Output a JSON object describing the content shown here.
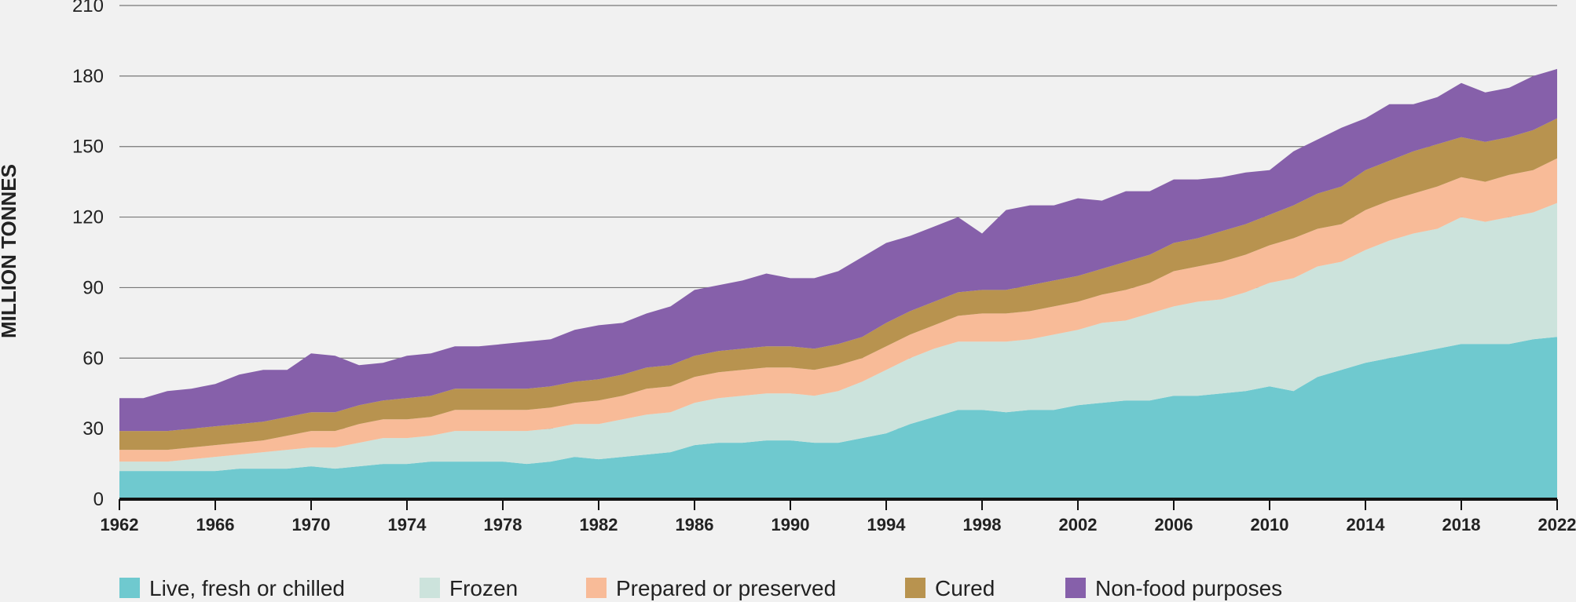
{
  "chart_data": {
    "type": "area",
    "stacked": true,
    "title": "",
    "xlabel": "",
    "ylabel": "MILLION TONNES",
    "ylim": [
      0,
      210
    ],
    "yticks": [
      0,
      30,
      60,
      90,
      120,
      150,
      180,
      210
    ],
    "xlim": [
      1962,
      2022
    ],
    "xticks": [
      1962,
      1966,
      1970,
      1974,
      1978,
      1982,
      1986,
      1990,
      1994,
      1998,
      2002,
      2006,
      2010,
      2014,
      2018,
      2022
    ],
    "grid": "horizontal",
    "legend_position": "bottom",
    "x": [
      1962,
      1963,
      1964,
      1965,
      1966,
      1967,
      1968,
      1969,
      1970,
      1971,
      1972,
      1973,
      1974,
      1975,
      1976,
      1977,
      1978,
      1979,
      1980,
      1981,
      1982,
      1983,
      1984,
      1985,
      1986,
      1987,
      1988,
      1989,
      1990,
      1991,
      1992,
      1993,
      1994,
      1995,
      1996,
      1997,
      1998,
      1999,
      2000,
      2001,
      2002,
      2003,
      2004,
      2005,
      2006,
      2007,
      2008,
      2009,
      2010,
      2011,
      2012,
      2013,
      2014,
      2015,
      2016,
      2017,
      2018,
      2019,
      2020,
      2021,
      2022
    ],
    "series": [
      {
        "name": "Live, fresh or chilled",
        "color": "#6fc9cf",
        "values": [
          12,
          12,
          12,
          12,
          12,
          13,
          13,
          13,
          14,
          13,
          14,
          15,
          15,
          16,
          16,
          16,
          16,
          15,
          16,
          18,
          17,
          18,
          19,
          20,
          23,
          24,
          24,
          25,
          25,
          24,
          24,
          26,
          28,
          32,
          35,
          38,
          38,
          37,
          38,
          38,
          40,
          41,
          42,
          42,
          44,
          44,
          45,
          46,
          48,
          46,
          52,
          55,
          58,
          60,
          62,
          64,
          66,
          66,
          66,
          68,
          69
        ]
      },
      {
        "name": "Frozen",
        "color": "#cce3dc",
        "values": [
          4,
          4,
          4,
          5,
          6,
          6,
          7,
          8,
          8,
          9,
          10,
          11,
          11,
          11,
          13,
          13,
          13,
          14,
          14,
          14,
          15,
          16,
          17,
          17,
          18,
          19,
          20,
          20,
          20,
          20,
          22,
          24,
          27,
          28,
          29,
          29,
          29,
          30,
          30,
          32,
          32,
          34,
          34,
          37,
          38,
          40,
          40,
          42,
          44,
          48,
          47,
          46,
          48,
          50,
          51,
          51,
          54,
          52,
          54,
          54,
          57
        ]
      },
      {
        "name": "Prepared or preserved",
        "color": "#f8bb98",
        "values": [
          5,
          5,
          5,
          5,
          5,
          5,
          5,
          6,
          7,
          7,
          8,
          8,
          8,
          8,
          9,
          9,
          9,
          9,
          9,
          9,
          10,
          10,
          11,
          11,
          11,
          11,
          11,
          11,
          11,
          11,
          11,
          10,
          10,
          10,
          10,
          11,
          12,
          12,
          12,
          12,
          12,
          12,
          13,
          13,
          15,
          15,
          16,
          16,
          16,
          17,
          16,
          16,
          17,
          17,
          17,
          18,
          17,
          17,
          18,
          18,
          19
        ]
      },
      {
        "name": "Cured",
        "color": "#b8934f",
        "values": [
          8,
          8,
          8,
          8,
          8,
          8,
          8,
          8,
          8,
          8,
          8,
          8,
          9,
          9,
          9,
          9,
          9,
          9,
          9,
          9,
          9,
          9,
          9,
          9,
          9,
          9,
          9,
          9,
          9,
          9,
          9,
          9,
          10,
          10,
          10,
          10,
          10,
          10,
          11,
          11,
          11,
          11,
          12,
          12,
          12,
          12,
          13,
          13,
          13,
          14,
          15,
          16,
          17,
          17,
          18,
          18,
          17,
          17,
          16,
          17,
          17
        ]
      },
      {
        "name": "Non-food purposes",
        "color": "#8660aa",
        "values": [
          14,
          14,
          17,
          17,
          18,
          21,
          22,
          20,
          25,
          24,
          17,
          16,
          18,
          18,
          18,
          18,
          19,
          20,
          20,
          22,
          23,
          22,
          23,
          25,
          28,
          28,
          29,
          31,
          29,
          30,
          31,
          34,
          34,
          32,
          32,
          32,
          24,
          34,
          34,
          32,
          33,
          29,
          30,
          27,
          27,
          25,
          23,
          22,
          19,
          23,
          23,
          25,
          22,
          24,
          20,
          20,
          23,
          21,
          21,
          23,
          21
        ]
      }
    ]
  }
}
